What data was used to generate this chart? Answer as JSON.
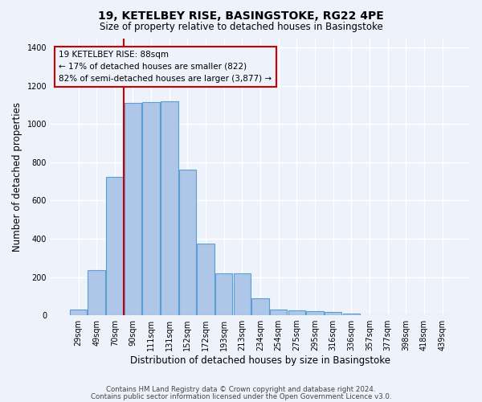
{
  "title1": "19, KETELBEY RISE, BASINGSTOKE, RG22 4PE",
  "title2": "Size of property relative to detached houses in Basingstoke",
  "xlabel": "Distribution of detached houses by size in Basingstoke",
  "ylabel": "Number of detached properties",
  "categories": [
    "29sqm",
    "49sqm",
    "70sqm",
    "90sqm",
    "111sqm",
    "131sqm",
    "152sqm",
    "172sqm",
    "193sqm",
    "213sqm",
    "234sqm",
    "254sqm",
    "275sqm",
    "295sqm",
    "316sqm",
    "336sqm",
    "357sqm",
    "377sqm",
    "398sqm",
    "418sqm",
    "439sqm"
  ],
  "values": [
    30,
    235,
    725,
    1110,
    1115,
    1120,
    760,
    375,
    220,
    220,
    90,
    30,
    25,
    22,
    18,
    8,
    0,
    0,
    0,
    0,
    0
  ],
  "bar_color": "#aec6e8",
  "bar_edge_color": "#5a9fd4",
  "marker_label1": "19 KETELBEY RISE: 88sqm",
  "marker_label2": "← 17% of detached houses are smaller (822)",
  "marker_label3": "82% of semi-detached houses are larger (3,877) →",
  "vline_color": "#cc0000",
  "ylim": [
    0,
    1450
  ],
  "footer1": "Contains HM Land Registry data © Crown copyright and database right 2024.",
  "footer2": "Contains public sector information licensed under the Open Government Licence v3.0.",
  "bg_color": "#eef2fa",
  "grid_color": "#ffffff"
}
